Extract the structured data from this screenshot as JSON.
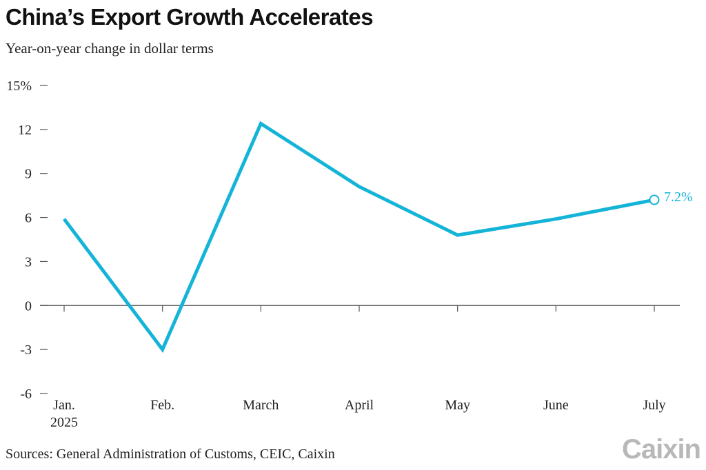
{
  "header": {
    "title": "China’s Export Growth Accelerates",
    "subtitle": "Year-on-year change in dollar terms"
  },
  "footer": {
    "source": "Sources: General Administration of Customs, CEIC, Caixin",
    "logo": "Caixin"
  },
  "colors": {
    "line": "#14b4d8",
    "axis": "#555555",
    "text": "#222222"
  },
  "chart_data": {
    "type": "line",
    "title": "China’s Export Growth Accelerates",
    "subtitle": "Year-on-year change in dollar terms",
    "categories": [
      "Jan. 2025",
      "Feb.",
      "March",
      "April",
      "May",
      "June",
      "July"
    ],
    "category_labels": [
      [
        "Jan.",
        "2025"
      ],
      [
        "Feb."
      ],
      [
        "March"
      ],
      [
        "April"
      ],
      [
        "May"
      ],
      [
        "June"
      ],
      [
        "July"
      ]
    ],
    "values": [
      5.9,
      -3.0,
      12.4,
      8.1,
      4.8,
      5.9,
      7.2
    ],
    "ylim": [
      -6,
      15
    ],
    "yticks": [
      15,
      12,
      9,
      6,
      3,
      0,
      -3,
      -6
    ],
    "ytick_labels": [
      "15%",
      "12",
      "9",
      "6",
      "3",
      "0",
      "-3",
      "-6"
    ],
    "annotation": "7.2%",
    "grid": false
  }
}
